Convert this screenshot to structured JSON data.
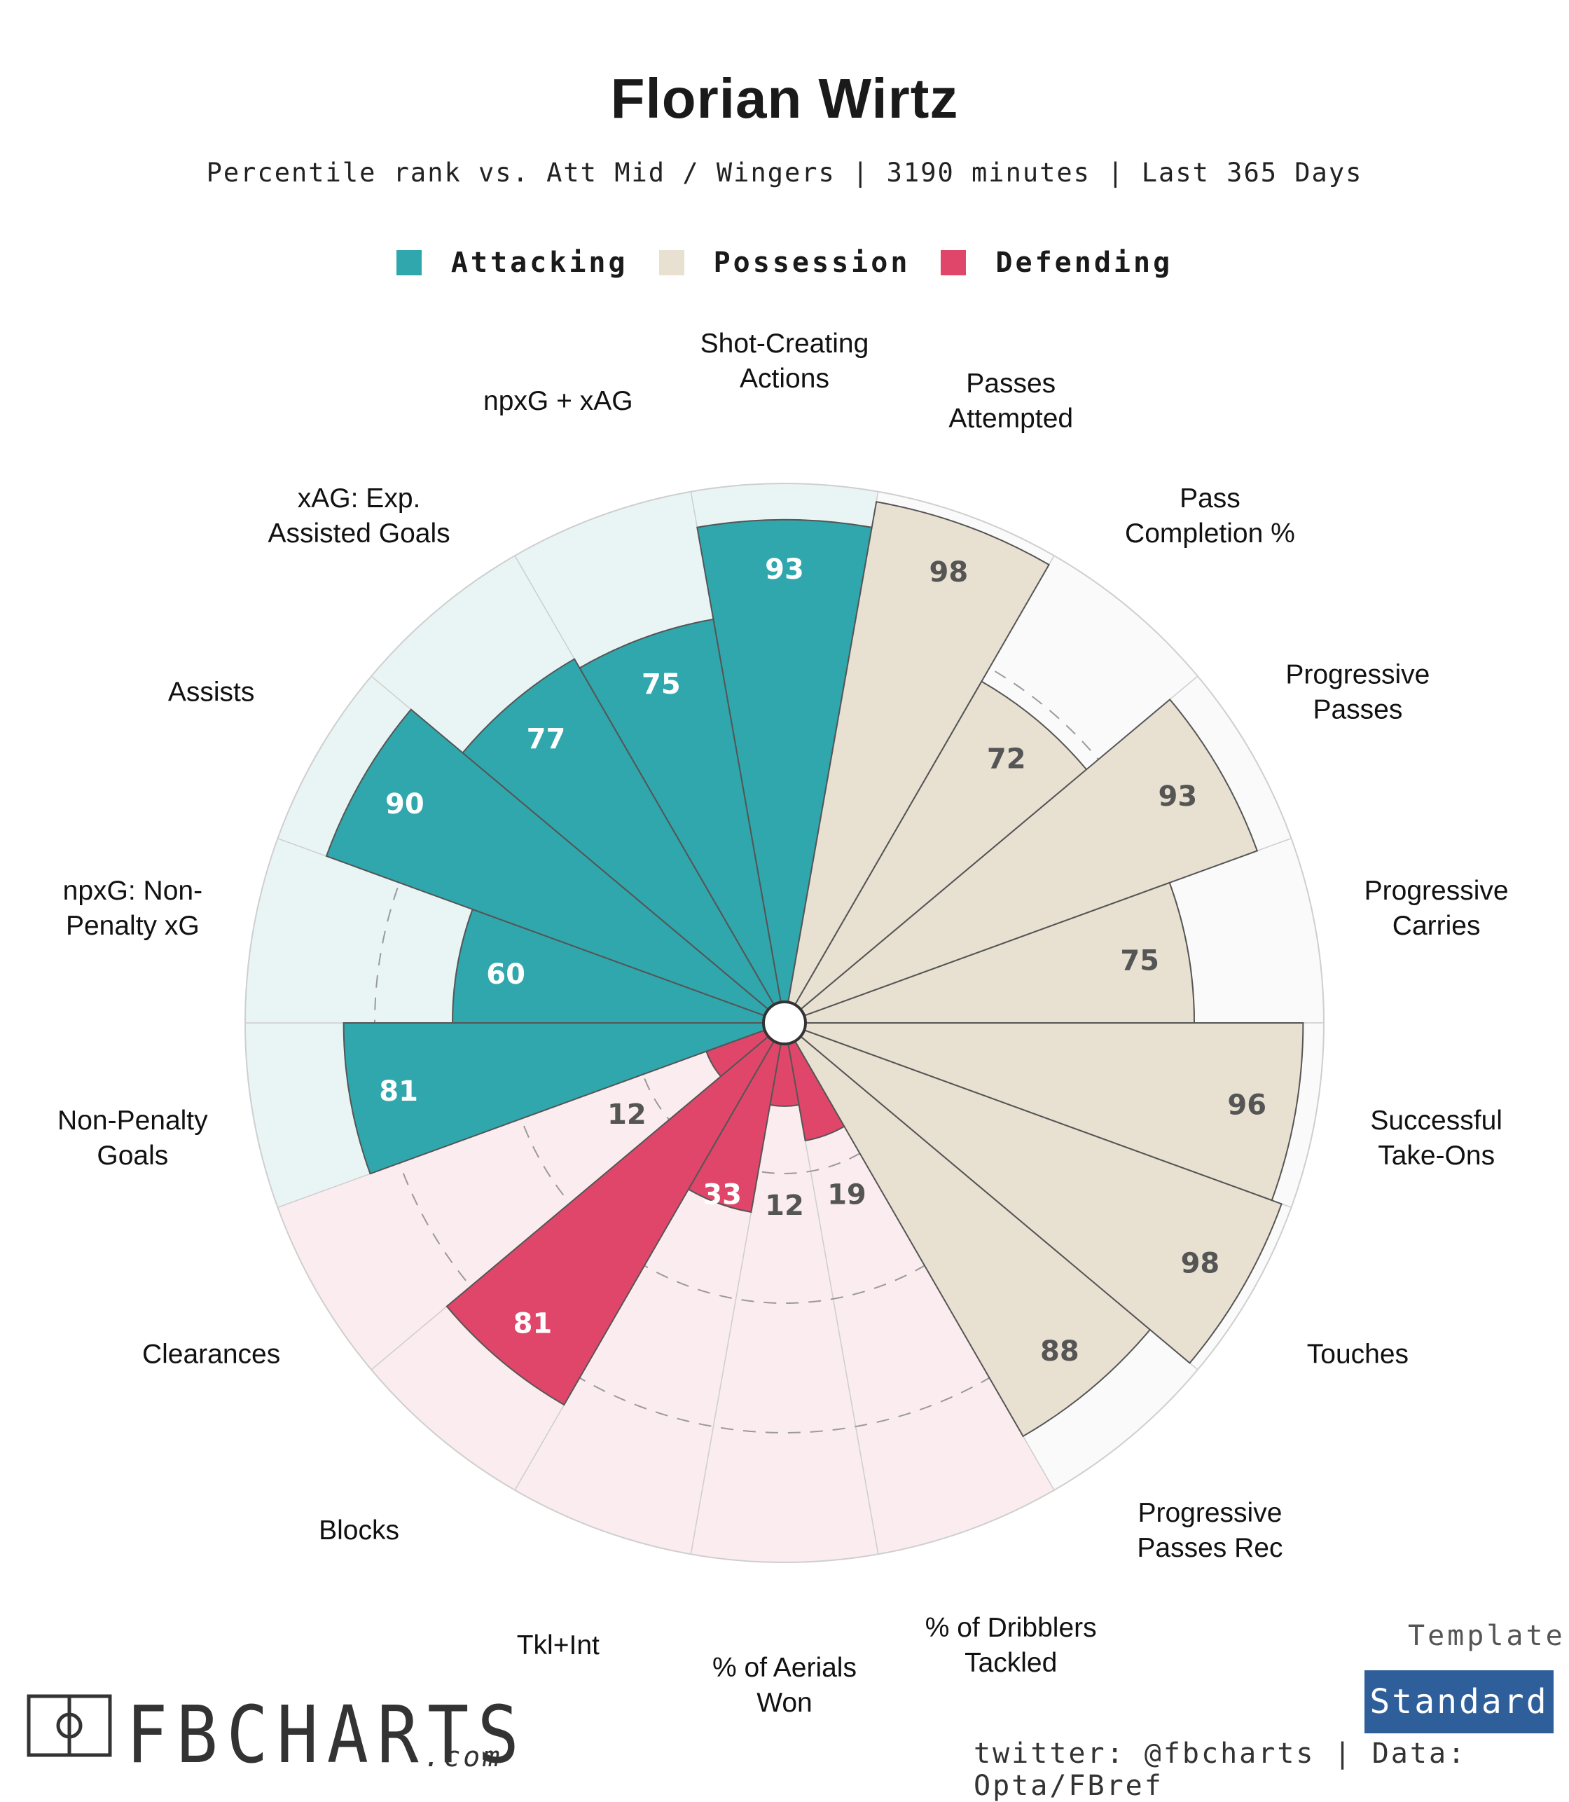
{
  "header": {
    "title": "Florian Wirtz",
    "subtitle": "Percentile rank vs. Att Mid / Wingers | 3190 minutes | Last 365 Days"
  },
  "legend": [
    {
      "label": "Attacking",
      "color": "#2fa7ad"
    },
    {
      "label": "Possession",
      "color": "#e8e1d2"
    },
    {
      "label": "Defending",
      "color": "#e0466a"
    }
  ],
  "chart_data": {
    "type": "polar-bar",
    "title": "Florian Wirtz",
    "subtitle": "Percentile rank vs. Att Mid / Wingers | 3190 minutes | Last 365 Days",
    "rlim": [
      0,
      100
    ],
    "gridlines": [
      25,
      50,
      75
    ],
    "categories": [
      {
        "label": "Shot-Creating Actions",
        "value": 93,
        "group": "Attacking"
      },
      {
        "label": "Passes Attempted",
        "value": 98,
        "group": "Possession"
      },
      {
        "label": "Pass Completion %",
        "value": 72,
        "group": "Possession"
      },
      {
        "label": "Progressive Passes",
        "value": 93,
        "group": "Possession"
      },
      {
        "label": "Progressive Carries",
        "value": 75,
        "group": "Possession"
      },
      {
        "label": "Successful Take-Ons",
        "value": 96,
        "group": "Possession"
      },
      {
        "label": "Touches",
        "value": 98,
        "group": "Possession"
      },
      {
        "label": "Progressive Passes Rec",
        "value": 88,
        "group": "Possession"
      },
      {
        "label": "% of Dribblers Tackled",
        "value": 19,
        "group": "Defending"
      },
      {
        "label": "% of Aerials Won",
        "value": 12,
        "group": "Defending"
      },
      {
        "label": "Tkl+Int",
        "value": 33,
        "group": "Defending"
      },
      {
        "label": "Blocks",
        "value": 81,
        "group": "Defending"
      },
      {
        "label": "Clearances",
        "value": 12,
        "group": "Defending"
      },
      {
        "label": "Non-Penalty Goals",
        "value": 81,
        "group": "Attacking"
      },
      {
        "label": "npxG: Non-Penalty xG",
        "value": 60,
        "group": "Attacking"
      },
      {
        "label": "Assists",
        "value": 90,
        "group": "Attacking"
      },
      {
        "label": "xAG: Exp. Assisted Goals",
        "value": 77,
        "group": "Attacking"
      },
      {
        "label": "npxG + xAG",
        "value": 75,
        "group": "Attacking"
      }
    ],
    "group_colors": {
      "Attacking": {
        "bar": "#2fa7ad",
        "bg": "#e9f5f5",
        "text": "#ffffff"
      },
      "Possession": {
        "bar": "#e8e1d2",
        "bg": "#fafafa",
        "text": "#555555"
      },
      "Defending": {
        "bar": "#e0466a",
        "bg": "#fbecef",
        "text": "#ffffff"
      }
    },
    "label_lines": {
      "Shot-Creating Actions": [
        "Shot-Creating",
        "Actions"
      ],
      "Passes Attempted": [
        "Passes",
        "Attempted"
      ],
      "Pass Completion %": [
        "Pass",
        "Completion %"
      ],
      "Progressive Passes": [
        "Progressive",
        "Passes"
      ],
      "Progressive Carries": [
        "Progressive",
        "Carries"
      ],
      "Successful Take-Ons": [
        "Successful",
        "Take-Ons"
      ],
      "Touches": [
        "Touches"
      ],
      "Progressive Passes Rec": [
        "Progressive",
        "Passes Rec"
      ],
      "% of Dribblers Tackled": [
        "% of Dribblers",
        "Tackled"
      ],
      "% of Aerials Won": [
        "% of Aerials",
        "Won"
      ],
      "Tkl+Int": [
        "Tkl+Int"
      ],
      "Blocks": [
        "Blocks"
      ],
      "Clearances": [
        "Clearances"
      ],
      "Non-Penalty Goals": [
        "Non-Penalty",
        "Goals"
      ],
      "npxG: Non-Penalty xG": [
        "npxG: Non-",
        "Penalty xG"
      ],
      "Assists": [
        "Assists"
      ],
      "xAG: Exp. Assisted Goals": [
        "xAG: Exp.",
        "Assisted Goals"
      ],
      "npxG + xAG": [
        "npxG + xAG"
      ]
    }
  },
  "footer": {
    "template_label": "Template",
    "template_value": "Standard",
    "credit": "twitter: @fbcharts | Data: Opta/FBref",
    "logo_text": "FBCHARTS",
    "logo_tld": ".com"
  }
}
